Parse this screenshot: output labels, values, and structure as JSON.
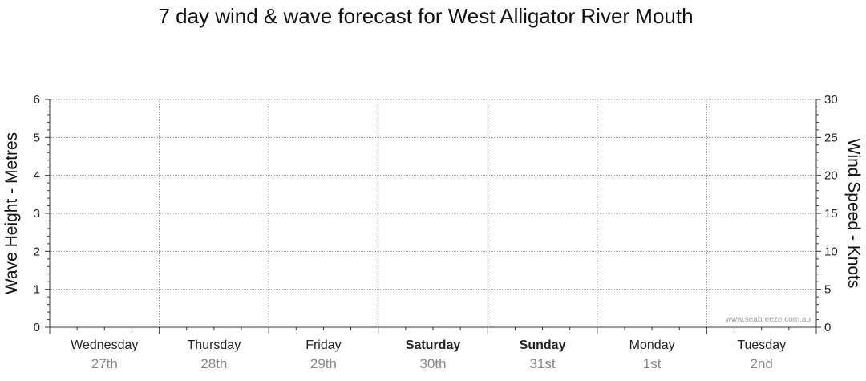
{
  "chart_data": {
    "type": "line",
    "title": "7 day wind & wave forecast for West Alligator River Mouth",
    "ylabel_left": "Wave Height - Metres",
    "ylabel_right": "Wind Speed - Knots",
    "y_left": {
      "ylim": [
        0,
        6
      ],
      "ticks": [
        0,
        1,
        2,
        3,
        4,
        5,
        6
      ]
    },
    "y_right": {
      "ylim": [
        0,
        30
      ],
      "ticks": [
        0,
        5,
        10,
        15,
        20,
        25,
        30
      ]
    },
    "grid": true,
    "days": [
      {
        "day": "Wednesday",
        "date": "27th",
        "bold": false
      },
      {
        "day": "Thursday",
        "date": "28th",
        "bold": false
      },
      {
        "day": "Friday",
        "date": "29th",
        "bold": false
      },
      {
        "day": "Saturday",
        "date": "30th",
        "bold": true
      },
      {
        "day": "Sunday",
        "date": "31st",
        "bold": true
      },
      {
        "day": "Monday",
        "date": "1st",
        "bold": false
      },
      {
        "day": "Tuesday",
        "date": "2nd",
        "bold": false
      }
    ],
    "series": []
  },
  "credit": "www.seabreeze.com.au"
}
